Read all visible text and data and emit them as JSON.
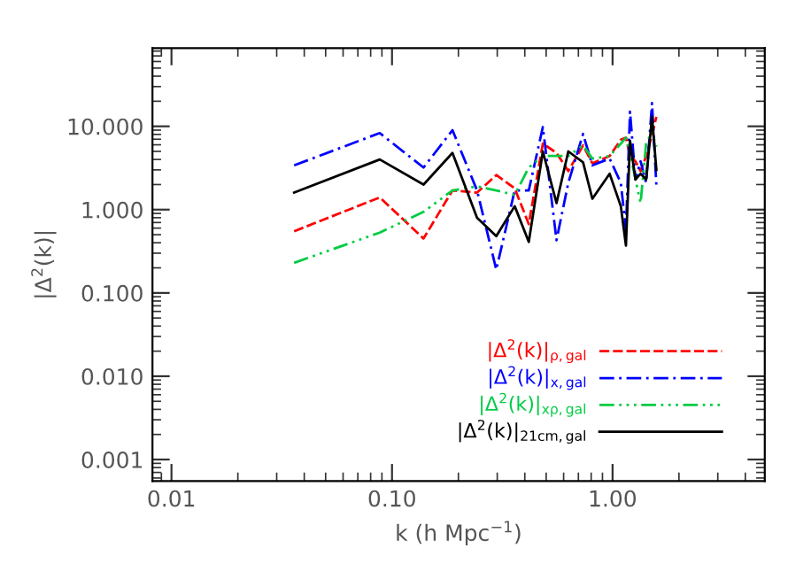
{
  "chart_data": {
    "type": "line",
    "xlabel": "k (h Mpc$^{−1}$)",
    "ylabel": "|Δ$^{2}$(k)|",
    "log": "xy",
    "x": [
      0.036,
      0.088,
      0.139,
      0.188,
      0.243,
      0.297,
      0.36,
      0.417,
      0.483,
      0.557,
      0.63,
      0.735,
      0.81,
      0.97,
      1.09,
      1.15,
      1.2,
      1.27,
      1.34,
      1.42,
      1.51,
      1.58
    ],
    "series": [
      {
        "name": "|Δ$^{2}$(k)|$_{ρ,gal}$",
        "color": "#ff0000",
        "line_style": "dashed",
        "values": [
          0.55,
          1.4,
          0.45,
          1.7,
          1.6,
          2.6,
          1.8,
          0.67,
          6.2,
          4.8,
          2.9,
          5.9,
          3.6,
          4.4,
          6.9,
          7.3,
          4.4,
          3.8,
          2.9,
          4.4,
          7.9,
          13
        ]
      },
      {
        "name": "|Δ$^{2}$(k)|$_{x,gal}$",
        "color": "#0000ff",
        "line_style": "dashdot",
        "values": [
          3.4,
          8.3,
          3.2,
          9.0,
          1.7,
          0.19,
          1.7,
          1.7,
          9.8,
          0.43,
          2.1,
          8.1,
          3.4,
          4.1,
          2.1,
          0.57,
          15,
          2.3,
          3.8,
          2.1,
          19,
          1.95
        ]
      },
      {
        "name": "|Δ$^{2}$(k)|$_{xρ,gal}$",
        "color": "#00cc44",
        "line_style": "dashdotdot",
        "values": [
          0.23,
          0.53,
          0.94,
          1.7,
          1.9,
          1.7,
          1.5,
          3.2,
          4.4,
          4.4,
          4.4,
          5.9,
          4.1,
          4.4,
          6.2,
          7.3,
          4.8,
          2.3,
          1.2,
          6.2,
          8.6,
          5.7
        ]
      },
      {
        "name": "|Δ$^{2}$(k)|$_{21cm,gal}$",
        "color": "#000000",
        "line_style": "solid",
        "values": [
          1.6,
          4.0,
          2.0,
          4.8,
          0.8,
          0.48,
          1.1,
          0.41,
          5.0,
          1.2,
          5.0,
          3.7,
          1.35,
          2.7,
          1.1,
          0.37,
          6.7,
          2.3,
          2.7,
          2.3,
          13,
          3.0
        ]
      }
    ],
    "xlim": [
      0.0082,
      4.9
    ],
    "ylim": [
      0.00055,
      87
    ],
    "xticks": [
      {
        "value": 0.01,
        "label": "0.01"
      },
      {
        "value": 0.1,
        "label": "0.10"
      },
      {
        "value": 1,
        "label": "1.00"
      }
    ],
    "yticks": [
      {
        "value": 0.001,
        "label": "0.001"
      },
      {
        "value": 0.01,
        "label": "0.010"
      },
      {
        "value": 0.1,
        "label": "0.100"
      },
      {
        "value": 1,
        "label": "1.000"
      },
      {
        "value": 10,
        "label": "10.000"
      }
    ],
    "legend": "bottom right",
    "grid": false
  }
}
